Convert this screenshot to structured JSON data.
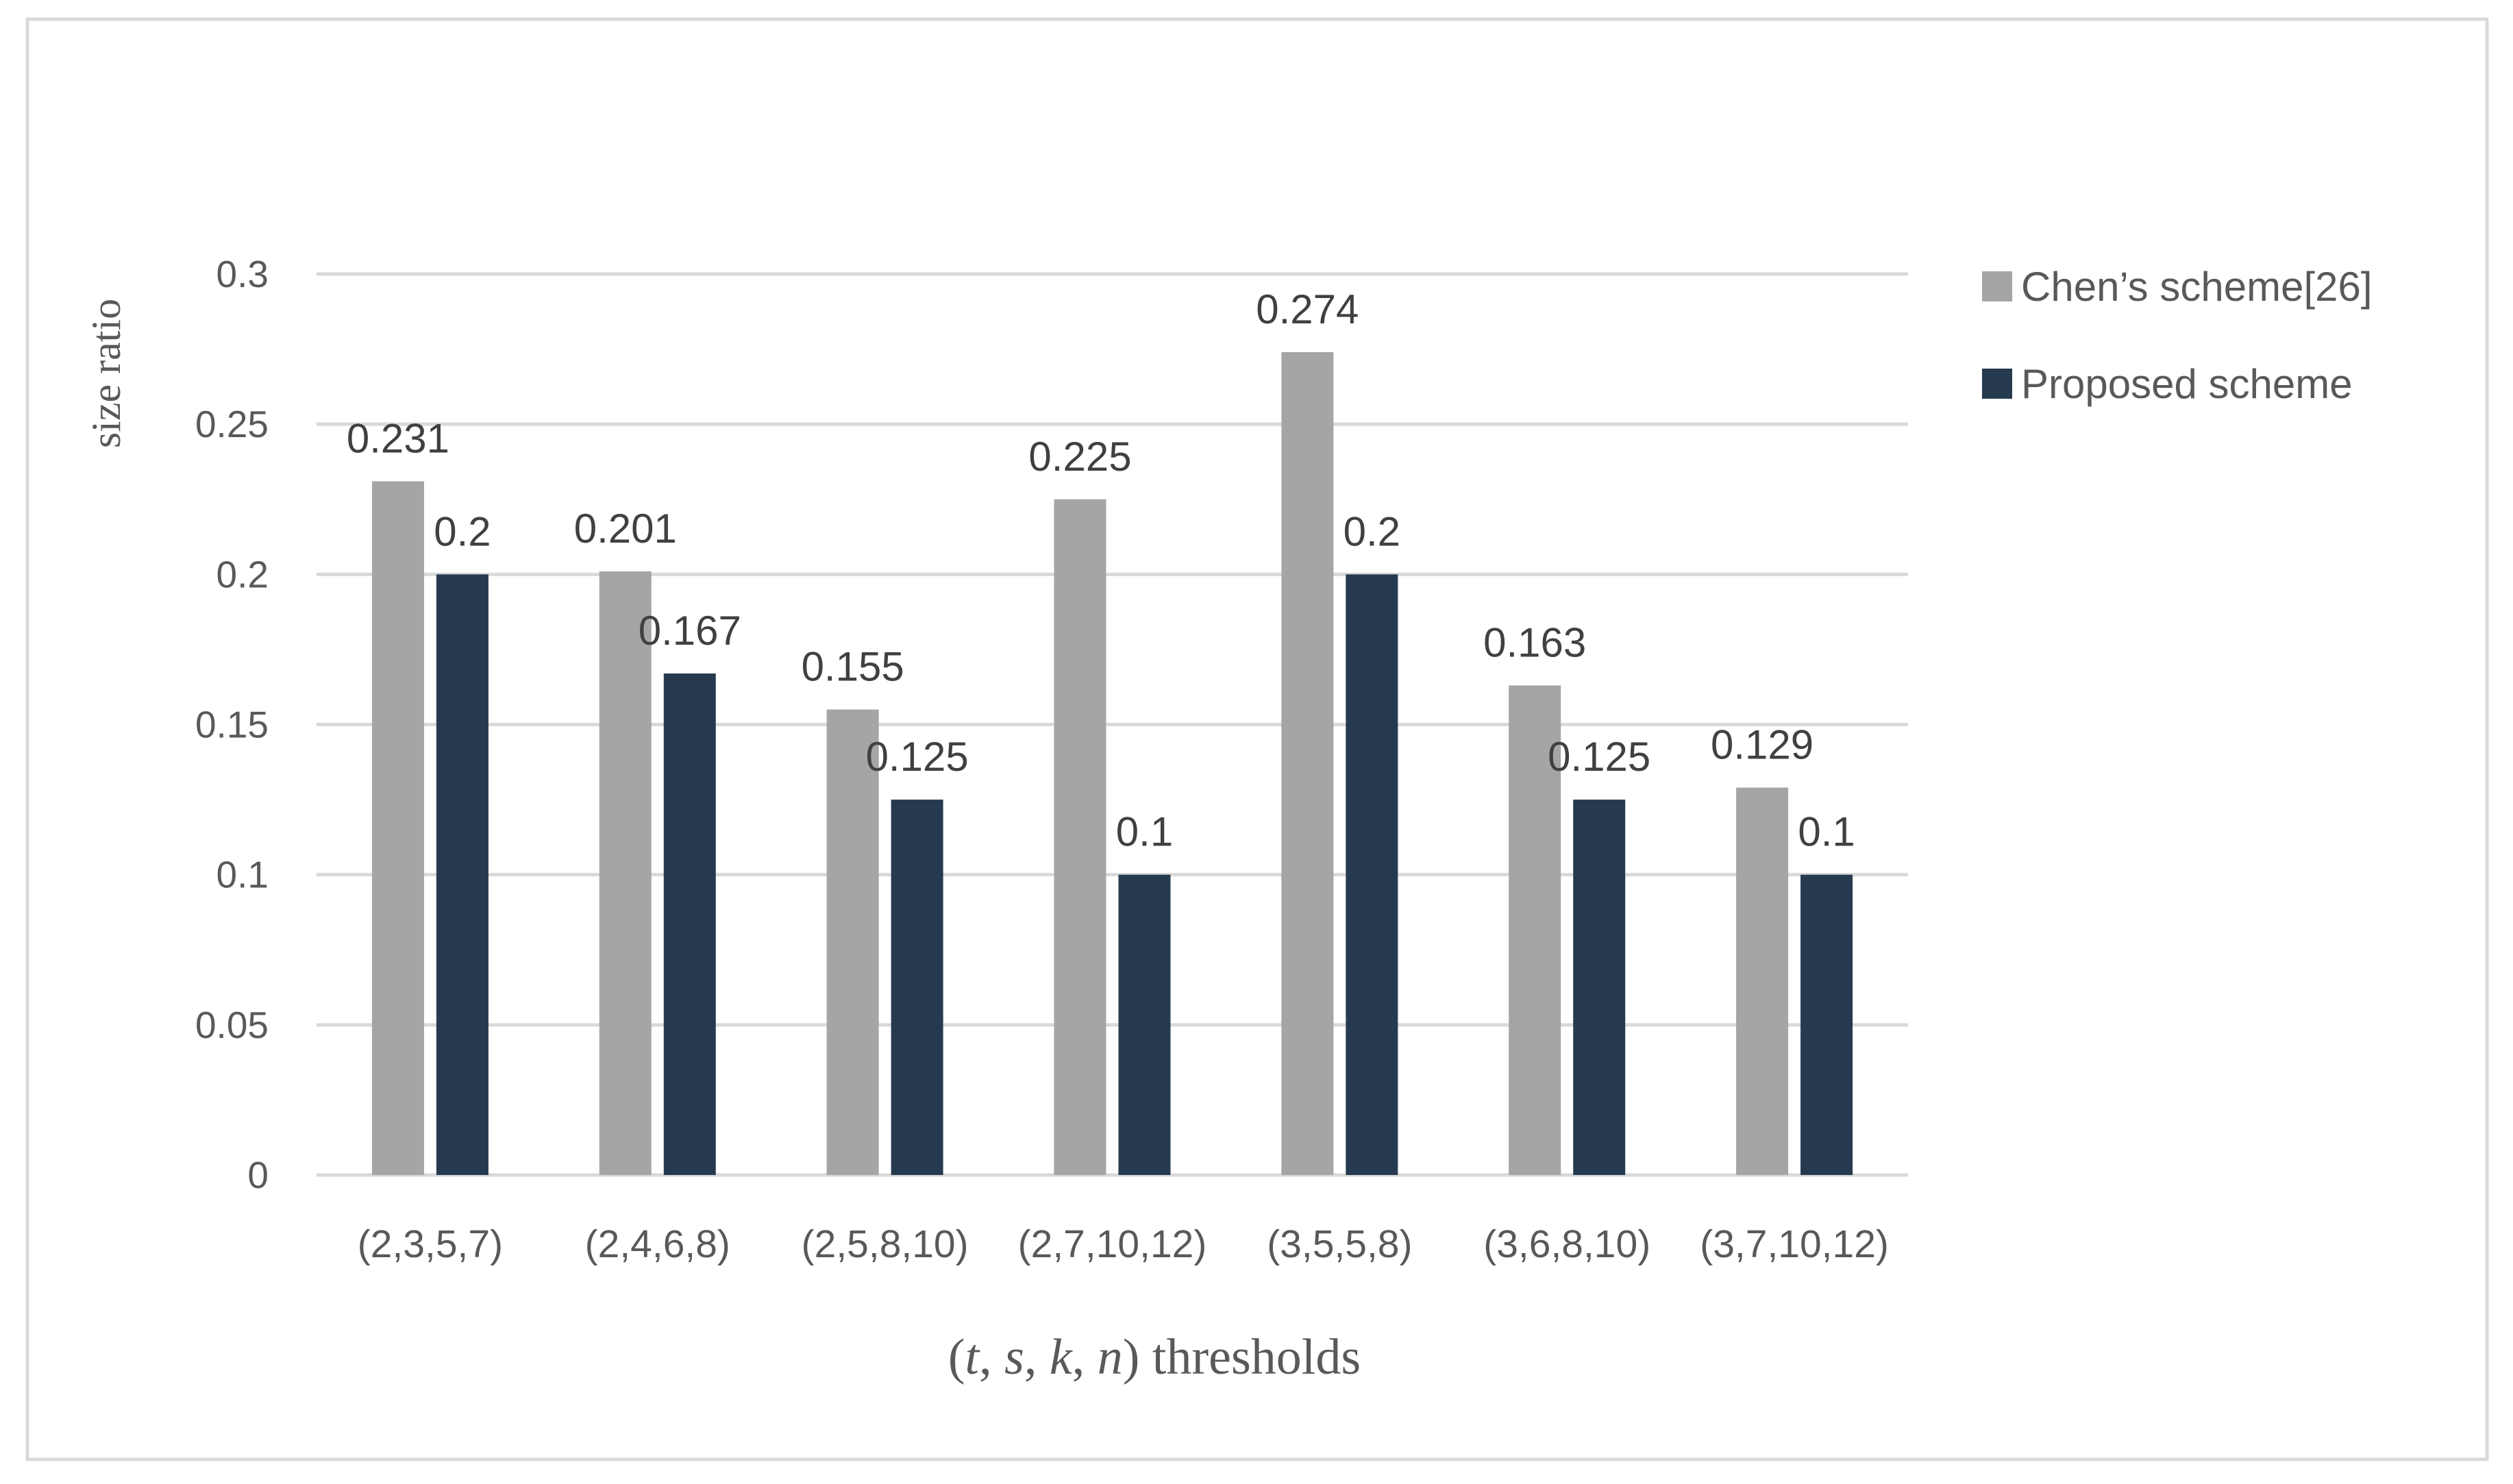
{
  "chart_data": {
    "type": "bar",
    "ylabel": "size ratio",
    "xlabel_parts": [
      {
        "text": "(",
        "italic": false
      },
      {
        "text": "t",
        "italic": true
      },
      {
        "text": ", ",
        "italic": false
      },
      {
        "text": "s",
        "italic": true
      },
      {
        "text": ", ",
        "italic": false
      },
      {
        "text": "k",
        "italic": true
      },
      {
        "text": ", ",
        "italic": false
      },
      {
        "text": "n",
        "italic": true
      },
      {
        "text": ") thresholds",
        "italic": false
      }
    ],
    "categories": [
      "(2,3,5,7)",
      "(2,4,6,8)",
      "(2,5,8,10)",
      "(2,7,10,12)",
      "(3,5,5,8)",
      "(3,6,8,10)",
      "(3,7,10,12)"
    ],
    "series": [
      {
        "name": "Chen’s scheme[26]",
        "color": "#a5a5a5",
        "values": [
          0.231,
          0.201,
          0.155,
          0.225,
          0.274,
          0.163,
          0.129
        ]
      },
      {
        "name": "Proposed scheme",
        "color": "#263a4f",
        "values": [
          0.2,
          0.167,
          0.125,
          0.1,
          0.2,
          0.125,
          0.1
        ]
      }
    ],
    "ylim": [
      0,
      0.3
    ],
    "yticks": [
      0,
      0.05,
      0.1,
      0.15,
      0.2,
      0.25,
      0.3
    ],
    "ytick_labels": [
      "0",
      "0.05",
      "0.1",
      "0.15",
      "0.2",
      "0.25",
      "0.3"
    ],
    "grid": true,
    "legend_position": "top-right",
    "data_labels": true
  }
}
